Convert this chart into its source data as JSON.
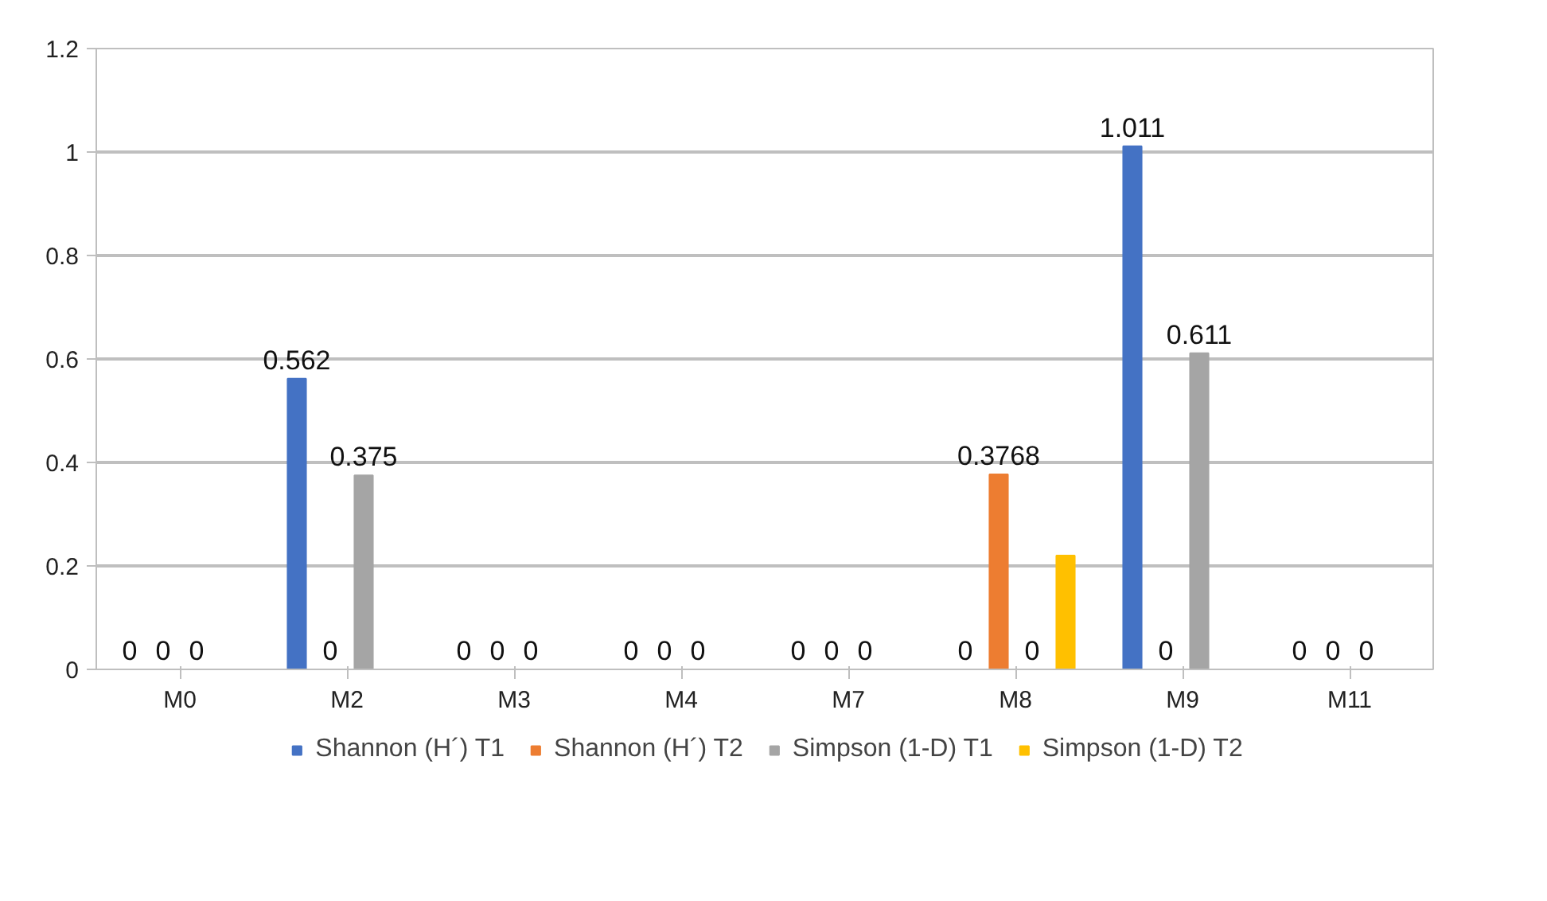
{
  "chart_data": {
    "type": "bar",
    "categories": [
      "M0",
      "M2",
      "M3",
      "M4",
      "M7",
      "M8",
      "M9",
      "M11"
    ],
    "series": [
      {
        "name": "Shannon (H´) T1",
        "color": "#4472c4",
        "values": [
          0,
          0.562,
          0,
          0,
          0,
          0,
          1.011,
          0
        ],
        "value_labels": [
          "0",
          "0.562",
          "0",
          "0",
          "0",
          "0",
          "1.011",
          "0"
        ]
      },
      {
        "name": "Shannon (H´) T2",
        "color": "#ed7d31",
        "values": [
          0,
          0,
          0,
          0,
          0,
          0.3768,
          0,
          0
        ],
        "value_labels": [
          "0",
          "0",
          "0",
          "0",
          "0",
          "0.3768",
          "0",
          "0"
        ]
      },
      {
        "name": "Simpson (1-D) T1",
        "color": "#a5a5a5",
        "values": [
          0,
          0.375,
          0,
          0,
          0,
          0,
          0.611,
          0
        ],
        "value_labels": [
          "0",
          "0.375",
          "0",
          "0",
          "0",
          "0",
          "0.611",
          "0"
        ]
      },
      {
        "name": "Simpson (1-D) T2",
        "color": "#ffc000",
        "values": [
          0,
          0,
          0,
          0,
          0,
          0.22,
          0,
          0
        ],
        "value_labels": [
          null,
          null,
          null,
          null,
          null,
          null,
          null,
          null
        ]
      }
    ],
    "ylim": [
      0,
      1.2
    ],
    "yticks": [
      0,
      0.2,
      0.4,
      0.6,
      0.8,
      1,
      1.2
    ],
    "grid": "y",
    "legend": "bottom"
  }
}
